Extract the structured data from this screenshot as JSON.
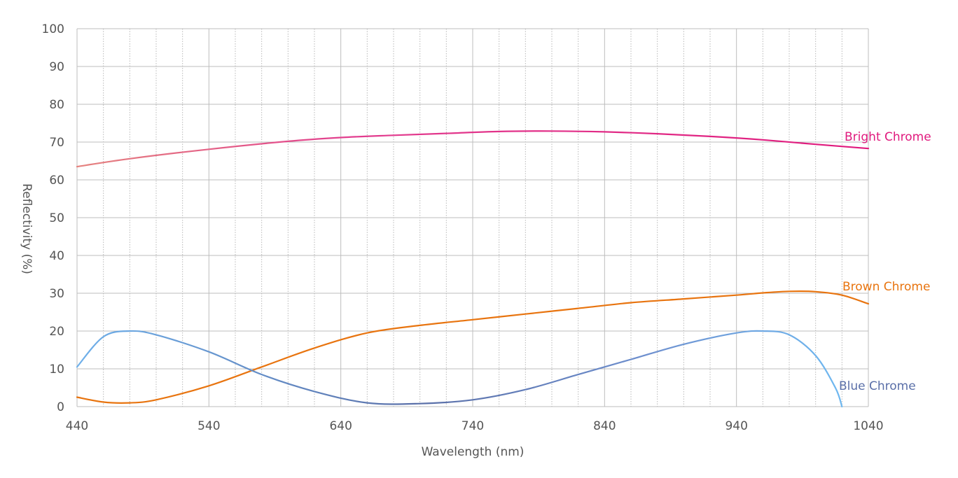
{
  "chart_data": {
    "type": "line",
    "xlabel": "Wavelength (nm)",
    "ylabel": "Reflectivity (%)",
    "xlim": [
      440,
      1040
    ],
    "ylim": [
      0,
      100
    ],
    "x_ticks": [
      "440",
      "540",
      "640",
      "740",
      "840",
      "940",
      "1040"
    ],
    "y_ticks": [
      "0",
      "10",
      "20",
      "30",
      "40",
      "50",
      "60",
      "70",
      "80",
      "90",
      "100"
    ],
    "grid": "major solid lines every 100 nm and every 10 %, dotted minor vertical lines every 20 nm",
    "series": [
      {
        "name": "Bright Chrome",
        "color_start": "#e5837f",
        "color_end": "#e0197d",
        "x": [
          440,
          480,
          540,
          600,
          640,
          680,
          720,
          760,
          800,
          840,
          880,
          920,
          960,
          1000,
          1040
        ],
        "y": [
          63.5,
          65.6,
          68.1,
          70.2,
          71.2,
          71.8,
          72.3,
          72.8,
          72.9,
          72.7,
          72.2,
          71.5,
          70.6,
          69.4,
          68.3
        ]
      },
      {
        "name": "Brown Chrome",
        "color": "#e8740f",
        "x": [
          440,
          460,
          480,
          500,
          540,
          580,
          620,
          660,
          700,
          740,
          780,
          820,
          860,
          900,
          940,
          960,
          980,
          1000,
          1020,
          1040
        ],
        "y": [
          2.5,
          1.2,
          1.0,
          1.8,
          5.5,
          10.5,
          15.5,
          19.5,
          21.5,
          23.0,
          24.5,
          26.0,
          27.5,
          28.5,
          29.5,
          30.1,
          30.5,
          30.4,
          29.5,
          27.2
        ]
      },
      {
        "name": "Blue Chrome",
        "color_start": "#6fb0ea",
        "color_mid": "#5a6fa8",
        "x": [
          440,
          460,
          480,
          500,
          540,
          580,
          620,
          660,
          700,
          740,
          780,
          820,
          860,
          900,
          940,
          960,
          980,
          1000,
          1015,
          1020
        ],
        "y": [
          10.5,
          18.5,
          20.0,
          19.0,
          14.5,
          8.5,
          4.0,
          1.0,
          0.8,
          1.8,
          4.5,
          8.5,
          12.5,
          16.5,
          19.5,
          20.0,
          19.0,
          13.5,
          5.0,
          0.0
        ]
      }
    ]
  }
}
